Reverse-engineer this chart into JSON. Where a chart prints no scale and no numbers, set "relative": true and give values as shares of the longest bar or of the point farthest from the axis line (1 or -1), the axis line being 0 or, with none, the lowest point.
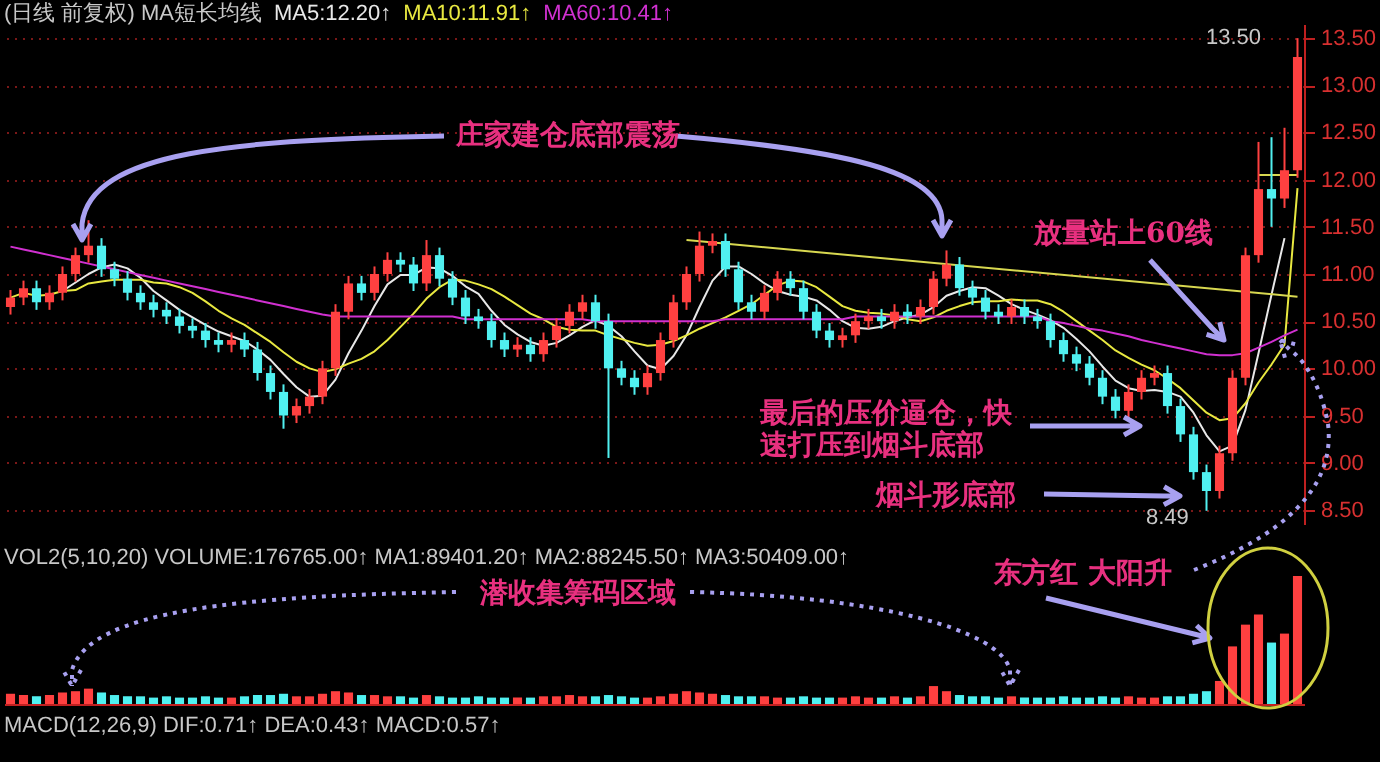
{
  "chart_data": [
    {
      "type": "candlestick",
      "title": "(日线 前复权) MA短长均线",
      "legend": "top left",
      "grid": "y",
      "tick_labels": "y",
      "categories": [
        null,
        null,
        null,
        null,
        null,
        null,
        null,
        null,
        null,
        null,
        null,
        null,
        null,
        null,
        null,
        null,
        null,
        null,
        null,
        null,
        null,
        null,
        null,
        null,
        null,
        null,
        null,
        null,
        null,
        null,
        null,
        null,
        null,
        null,
        null,
        null,
        null,
        null,
        null,
        null,
        null,
        null,
        null,
        null,
        null,
        null,
        null,
        null,
        null,
        null,
        null,
        null,
        null,
        null,
        null,
        null,
        null,
        null,
        null,
        null,
        null,
        null,
        null,
        null,
        null,
        null,
        null,
        null,
        null,
        null,
        null,
        null,
        null,
        null,
        null,
        null,
        null,
        null,
        null,
        null,
        null,
        null,
        null,
        null,
        null,
        null,
        null,
        null,
        null,
        null,
        null,
        null,
        null,
        null,
        null,
        null,
        null,
        null,
        null,
        null
      ],
      "ohlc": [
        [
          10.65,
          10.83,
          10.57,
          10.75
        ],
        [
          10.75,
          10.93,
          10.67,
          10.85
        ],
        [
          10.85,
          10.93,
          10.62,
          10.7
        ],
        [
          10.7,
          10.88,
          10.62,
          10.8
        ],
        [
          10.8,
          11.08,
          10.72,
          11.0
        ],
        [
          11.0,
          11.28,
          10.92,
          11.2
        ],
        [
          11.2,
          11.57,
          11.12,
          11.3
        ],
        [
          11.3,
          11.38,
          10.97,
          11.05
        ],
        [
          11.05,
          11.13,
          10.87,
          10.95
        ],
        [
          10.95,
          11.03,
          10.72,
          10.8
        ],
        [
          10.8,
          10.88,
          10.62,
          10.7
        ],
        [
          10.7,
          10.78,
          10.54,
          10.62
        ],
        [
          10.62,
          10.7,
          10.47,
          10.55
        ],
        [
          10.55,
          10.63,
          10.37,
          10.45
        ],
        [
          10.45,
          10.53,
          10.32,
          10.4
        ],
        [
          10.4,
          10.48,
          10.22,
          10.3
        ],
        [
          10.3,
          10.38,
          10.17,
          10.25
        ],
        [
          10.25,
          10.38,
          10.17,
          10.3
        ],
        [
          10.3,
          10.38,
          10.12,
          10.2
        ],
        [
          10.2,
          10.28,
          9.87,
          9.95
        ],
        [
          9.95,
          10.03,
          9.67,
          9.75
        ],
        [
          9.75,
          9.83,
          9.36,
          9.5
        ],
        [
          9.5,
          9.68,
          9.42,
          9.6
        ],
        [
          9.6,
          9.78,
          9.52,
          9.7
        ],
        [
          9.7,
          10.08,
          9.62,
          10.0
        ],
        [
          10.0,
          10.68,
          9.92,
          10.6
        ],
        [
          10.6,
          10.98,
          10.52,
          10.9
        ],
        [
          10.9,
          10.98,
          10.72,
          10.8
        ],
        [
          10.8,
          11.08,
          10.72,
          11.0
        ],
        [
          11.0,
          11.23,
          10.92,
          11.15
        ],
        [
          11.15,
          11.23,
          11.02,
          11.1
        ],
        [
          11.1,
          11.18,
          10.82,
          10.9
        ],
        [
          10.9,
          11.36,
          10.82,
          11.2
        ],
        [
          11.2,
          11.28,
          10.87,
          10.95
        ],
        [
          10.95,
          11.03,
          10.67,
          10.75
        ],
        [
          10.75,
          10.83,
          10.47,
          10.55
        ],
        [
          10.55,
          10.63,
          10.42,
          10.5
        ],
        [
          10.5,
          10.58,
          10.22,
          10.3
        ],
        [
          10.3,
          10.38,
          10.12,
          10.2
        ],
        [
          10.2,
          10.33,
          10.12,
          10.25
        ],
        [
          10.25,
          10.33,
          10.07,
          10.15
        ],
        [
          10.15,
          10.38,
          10.07,
          10.3
        ],
        [
          10.3,
          10.53,
          10.22,
          10.45
        ],
        [
          10.45,
          10.68,
          10.37,
          10.6
        ],
        [
          10.6,
          10.78,
          10.52,
          10.7
        ],
        [
          10.7,
          10.78,
          10.42,
          10.5
        ],
        [
          10.5,
          10.58,
          9.05,
          10.0
        ],
        [
          10.0,
          10.08,
          9.82,
          9.9
        ],
        [
          9.9,
          9.98,
          9.72,
          9.8
        ],
        [
          9.8,
          10.03,
          9.72,
          9.95
        ],
        [
          9.95,
          10.38,
          9.87,
          10.3
        ],
        [
          10.3,
          10.78,
          10.22,
          10.7
        ],
        [
          10.7,
          11.08,
          10.62,
          11.0
        ],
        [
          11.0,
          11.45,
          10.92,
          11.3
        ],
        [
          11.3,
          11.43,
          11.22,
          11.35
        ],
        [
          11.35,
          11.43,
          10.97,
          11.05
        ],
        [
          11.05,
          11.13,
          10.62,
          10.7
        ],
        [
          10.7,
          10.78,
          10.52,
          10.6
        ],
        [
          10.6,
          10.88,
          10.52,
          10.8
        ],
        [
          10.8,
          11.03,
          10.72,
          10.95
        ],
        [
          10.95,
          11.03,
          10.77,
          10.85
        ],
        [
          10.85,
          10.93,
          10.52,
          10.6
        ],
        [
          10.6,
          10.68,
          10.32,
          10.4
        ],
        [
          10.4,
          10.48,
          10.22,
          10.3
        ],
        [
          10.3,
          10.43,
          10.22,
          10.35
        ],
        [
          10.35,
          10.58,
          10.27,
          10.5
        ],
        [
          10.5,
          10.63,
          10.42,
          10.55
        ],
        [
          10.55,
          10.63,
          10.42,
          10.5
        ],
        [
          10.5,
          10.68,
          10.42,
          10.6
        ],
        [
          10.6,
          10.68,
          10.47,
          10.55
        ],
        [
          10.55,
          10.73,
          10.47,
          10.65
        ],
        [
          10.65,
          11.03,
          10.57,
          10.95
        ],
        [
          10.95,
          11.25,
          10.87,
          11.1
        ],
        [
          11.1,
          11.18,
          10.77,
          10.85
        ],
        [
          10.85,
          10.93,
          10.67,
          10.75
        ],
        [
          10.75,
          10.83,
          10.52,
          10.6
        ],
        [
          10.6,
          10.68,
          10.47,
          10.55
        ],
        [
          10.55,
          10.73,
          10.47,
          10.65
        ],
        [
          10.65,
          10.73,
          10.47,
          10.55
        ],
        [
          10.55,
          10.63,
          10.42,
          10.5
        ],
        [
          10.5,
          10.58,
          10.22,
          10.3
        ],
        [
          10.3,
          10.38,
          10.07,
          10.15
        ],
        [
          10.15,
          10.23,
          9.97,
          10.05
        ],
        [
          10.05,
          10.13,
          9.82,
          9.9
        ],
        [
          9.9,
          9.98,
          9.62,
          9.7
        ],
        [
          9.7,
          9.78,
          9.47,
          9.55
        ],
        [
          9.55,
          9.83,
          9.47,
          9.75
        ],
        [
          9.75,
          9.98,
          9.67,
          9.9
        ],
        [
          9.9,
          10.03,
          9.82,
          9.95
        ],
        [
          9.95,
          10.03,
          9.52,
          9.6
        ],
        [
          9.6,
          9.68,
          9.22,
          9.3
        ],
        [
          9.3,
          9.38,
          8.82,
          8.9
        ],
        [
          8.9,
          8.98,
          8.49,
          8.7
        ],
        [
          8.7,
          9.18,
          8.62,
          9.1
        ],
        [
          9.1,
          9.98,
          9.02,
          9.9
        ],
        [
          9.9,
          11.28,
          9.82,
          11.2
        ],
        [
          11.2,
          12.4,
          11.12,
          11.9
        ],
        [
          11.9,
          12.45,
          11.5,
          11.8
        ],
        [
          11.8,
          12.55,
          11.7,
          12.1
        ],
        [
          12.1,
          13.5,
          12.02,
          13.3
        ]
      ],
      "colors": [
        "#ff4040",
        "#ff4040",
        "#50f0f0",
        "#ff4040",
        "#ff4040",
        "#ff4040",
        "#ff4040",
        "#50f0f0",
        "#50f0f0",
        "#50f0f0",
        "#50f0f0",
        "#50f0f0",
        "#50f0f0",
        "#50f0f0",
        "#50f0f0",
        "#50f0f0",
        "#50f0f0",
        "#ff4040",
        "#50f0f0",
        "#50f0f0",
        "#50f0f0",
        "#50f0f0",
        "#ff4040",
        "#ff4040",
        "#ff4040",
        "#ff4040",
        "#ff4040",
        "#50f0f0",
        "#ff4040",
        "#ff4040",
        "#50f0f0",
        "#50f0f0",
        "#ff4040",
        "#50f0f0",
        "#50f0f0",
        "#50f0f0",
        "#50f0f0",
        "#50f0f0",
        "#50f0f0",
        "#ff4040",
        "#50f0f0",
        "#ff4040",
        "#ff4040",
        "#ff4040",
        "#ff4040",
        "#50f0f0",
        "#50f0f0",
        "#50f0f0",
        "#50f0f0",
        "#ff4040",
        "#ff4040",
        "#ff4040",
        "#ff4040",
        "#ff4040",
        "#ff4040",
        "#50f0f0",
        "#50f0f0",
        "#50f0f0",
        "#ff4040",
        "#ff4040",
        "#50f0f0",
        "#50f0f0",
        "#50f0f0",
        "#50f0f0",
        "#ff4040",
        "#ff4040",
        "#ff4040",
        "#50f0f0",
        "#ff4040",
        "#50f0f0",
        "#ff4040",
        "#ff4040",
        "#ff4040",
        "#50f0f0",
        "#50f0f0",
        "#50f0f0",
        "#50f0f0",
        "#ff4040",
        "#50f0f0",
        "#50f0f0",
        "#50f0f0",
        "#50f0f0",
        "#50f0f0",
        "#50f0f0",
        "#50f0f0",
        "#50f0f0",
        "#ff4040",
        "#ff4040",
        "#ff4040",
        "#50f0f0",
        "#50f0f0",
        "#50f0f0",
        "#50f0f0",
        "#ff4040",
        "#ff4040",
        "#ff4040",
        "#ff4040",
        "#50f0f0",
        "#ff4040",
        "#ff4040"
      ],
      "series": [
        {
          "name": "MA5:12.20↑",
          "type": "line",
          "color": "#e8e8e8",
          "values": [
            null,
            null,
            null,
            null,
            10.82,
            10.91,
            11.0,
            11.07,
            11.1,
            11.06,
            10.96,
            10.82,
            10.72,
            10.62,
            10.54,
            10.46,
            10.39,
            10.34,
            10.29,
            10.2,
            10.09,
            9.94,
            9.8,
            9.7,
            9.71,
            9.88,
            10.16,
            10.4,
            10.66,
            10.89,
            10.99,
            10.99,
            11.07,
            11.06,
            10.98,
            10.87,
            10.79,
            10.61,
            10.46,
            10.36,
            10.28,
            10.24,
            10.27,
            10.35,
            10.44,
            10.51,
            10.45,
            10.34,
            10.18,
            10.03,
            9.99,
            10.13,
            10.35,
            10.65,
            10.93,
            11.08,
            11.08,
            11.0,
            10.9,
            10.82,
            10.78,
            10.76,
            10.72,
            10.62,
            10.5,
            10.43,
            10.42,
            10.44,
            10.5,
            10.54,
            10.57,
            10.65,
            10.77,
            10.82,
            10.86,
            10.85,
            10.77,
            10.68,
            10.62,
            10.57,
            10.51,
            10.43,
            10.31,
            10.18,
            10.02,
            9.87,
            9.79,
            9.76,
            9.77,
            9.75,
            9.7,
            9.53,
            9.29,
            9.12,
            9.18,
            9.56,
            10.16,
            10.78,
            11.38,
            null
          ]
        },
        {
          "name": "MA10:11.91↑",
          "type": "line",
          "color": "#e8e840",
          "values": [
            10.75,
            10.8,
            10.77,
            10.78,
            10.82,
            10.83,
            10.9,
            10.92,
            10.94,
            10.94,
            10.94,
            10.91,
            10.9,
            10.86,
            10.8,
            10.71,
            10.61,
            10.53,
            10.46,
            10.37,
            10.28,
            10.17,
            10.07,
            10.0,
            9.96,
            9.99,
            10.05,
            10.1,
            10.18,
            10.3,
            10.44,
            10.58,
            10.74,
            10.86,
            10.94,
            10.93,
            10.89,
            10.84,
            10.76,
            10.67,
            10.58,
            10.52,
            10.44,
            10.41,
            10.4,
            10.4,
            10.35,
            10.31,
            10.27,
            10.24,
            10.25,
            10.29,
            10.35,
            10.42,
            10.48,
            10.54,
            10.61,
            10.68,
            10.78,
            10.88,
            10.93,
            10.92,
            10.86,
            10.76,
            10.66,
            10.61,
            10.59,
            10.58,
            10.56,
            10.52,
            10.5,
            10.54,
            10.61,
            10.66,
            10.7,
            10.71,
            10.71,
            10.73,
            10.72,
            10.72,
            10.68,
            10.6,
            10.5,
            10.4,
            10.3,
            10.19,
            10.11,
            10.04,
            9.98,
            9.89,
            9.79,
            9.66,
            9.53,
            9.45,
            9.47,
            9.63,
            9.85,
            10.04,
            10.25,
            11.91
          ]
        },
        {
          "name": "MA60:10.41↑",
          "type": "line",
          "color": "#d030d0",
          "values": [
            11.29,
            11.26,
            11.23,
            11.2,
            11.17,
            11.14,
            11.11,
            11.08,
            11.05,
            11.02,
            10.99,
            10.96,
            10.93,
            10.9,
            10.87,
            10.84,
            10.81,
            10.78,
            10.75,
            10.72,
            10.69,
            10.66,
            10.63,
            10.6,
            10.57,
            10.55,
            10.55,
            10.55,
            10.55,
            10.55,
            10.55,
            10.55,
            10.55,
            10.55,
            10.55,
            10.52,
            10.52,
            10.52,
            10.52,
            10.52,
            10.52,
            10.52,
            10.52,
            10.52,
            10.52,
            10.5,
            10.5,
            10.5,
            10.5,
            10.5,
            10.5,
            10.5,
            10.5,
            10.5,
            10.5,
            10.52,
            10.52,
            10.52,
            10.52,
            10.52,
            10.52,
            10.52,
            10.52,
            10.52,
            10.52,
            10.55,
            10.55,
            10.55,
            10.55,
            10.55,
            10.55,
            10.55,
            10.55,
            10.55,
            10.55,
            10.55,
            10.55,
            10.55,
            10.55,
            10.55,
            10.5,
            10.48,
            10.45,
            10.42,
            10.4,
            10.37,
            10.34,
            10.3,
            10.27,
            10.24,
            10.21,
            10.18,
            10.15,
            10.14,
            10.14,
            10.16,
            10.22,
            10.28,
            10.35,
            10.41
          ]
        },
        {
          "type": "line",
          "color": "#d8d850",
          "values": [
            null,
            null,
            null,
            null,
            null,
            null,
            null,
            null,
            null,
            null,
            null,
            null,
            null,
            null,
            null,
            null,
            null,
            null,
            null,
            null,
            null,
            null,
            null,
            null,
            null,
            null,
            null,
            null,
            null,
            null,
            null,
            null,
            null,
            null,
            null,
            null,
            null,
            null,
            null,
            null,
            null,
            null,
            null,
            null,
            null,
            null,
            null,
            null,
            null,
            null,
            null,
            null,
            11.36,
            null,
            null,
            null,
            null,
            null,
            null,
            null,
            null,
            null,
            null,
            null,
            null,
            null,
            null,
            null,
            null,
            null,
            null,
            null,
            null,
            null,
            null,
            null,
            null,
            null,
            null,
            null,
            null,
            null,
            null,
            null,
            null,
            null,
            null,
            null,
            null,
            null,
            null,
            null,
            null,
            null,
            null,
            null,
            null,
            null,
            null,
            10.76
          ]
        },
        {
          "type": "line",
          "color": "#d8d850",
          "values": [
            null,
            null,
            null,
            null,
            null,
            null,
            null,
            null,
            null,
            null,
            null,
            null,
            null,
            null,
            null,
            null,
            null,
            null,
            null,
            null,
            null,
            null,
            null,
            null,
            null,
            null,
            null,
            null,
            null,
            null,
            null,
            null,
            null,
            null,
            null,
            null,
            null,
            null,
            null,
            null,
            null,
            null,
            null,
            null,
            null,
            null,
            null,
            null,
            null,
            null,
            null,
            null,
            null,
            null,
            null,
            null,
            null,
            null,
            null,
            null,
            null,
            null,
            null,
            null,
            null,
            null,
            null,
            null,
            null,
            null,
            null,
            null,
            null,
            null,
            null,
            null,
            null,
            null,
            null,
            null,
            null,
            null,
            null,
            null,
            null,
            null,
            null,
            null,
            null,
            null,
            null,
            null,
            null,
            null,
            null,
            null,
            12.05,
            null,
            null,
            12.05
          ]
        }
      ],
      "ylim": [
        8.35,
        13.65
      ],
      "yticks": [
        {
          "value": 8.5,
          "label": "8.50"
        },
        {
          "value": 9,
          "label": "9.00"
        },
        {
          "value": 9.5,
          "label": "9.50"
        },
        {
          "value": 10,
          "label": "10.00"
        },
        {
          "value": 10.5,
          "label": "10.50"
        },
        {
          "value": 11,
          "label": "11.00"
        },
        {
          "value": 11.5,
          "label": "11.50"
        },
        {
          "value": 12,
          "label": "12.00"
        },
        {
          "value": 12.5,
          "label": "12.50"
        },
        {
          "value": 13,
          "label": "13.00"
        },
        {
          "value": 13.5,
          "label": "13.50"
        }
      ],
      "annotations": [
        "庄家建仓底部震荡",
        "放量站上60线",
        "最后的压价逼仓，快速打压到烟斗底部",
        "烟斗形底部",
        "13.50",
        "8.49"
      ]
    },
    {
      "type": "bar",
      "relative": true,
      "categories": [
        null,
        null,
        null,
        null,
        null,
        null,
        null,
        null,
        null,
        null,
        null,
        null,
        null,
        null,
        null,
        null,
        null,
        null,
        null,
        null,
        null,
        null,
        null,
        null,
        null,
        null,
        null,
        null,
        null,
        null,
        null,
        null,
        null,
        null,
        null,
        null,
        null,
        null,
        null,
        null,
        null,
        null,
        null,
        null,
        null,
        null,
        null,
        null,
        null,
        null,
        null,
        null,
        null,
        null,
        null,
        null,
        null,
        null,
        null,
        null,
        null,
        null,
        null,
        null,
        null,
        null,
        null,
        null,
        null,
        null,
        null,
        null,
        null,
        null,
        null,
        null,
        null,
        null,
        null,
        null,
        null,
        null,
        null,
        null,
        null,
        null,
        null,
        null,
        null,
        null,
        null,
        null,
        null,
        null,
        null,
        null,
        null,
        null,
        null,
        null
      ],
      "values": [
        0.08,
        0.07,
        0.06,
        0.07,
        0.09,
        0.1,
        0.12,
        0.09,
        0.07,
        0.06,
        0.06,
        0.05,
        0.06,
        0.05,
        0.05,
        0.06,
        0.05,
        0.05,
        0.06,
        0.07,
        0.07,
        0.08,
        0.06,
        0.06,
        0.08,
        0.1,
        0.09,
        0.07,
        0.07,
        0.06,
        0.06,
        0.05,
        0.07,
        0.06,
        0.05,
        0.05,
        0.06,
        0.05,
        0.05,
        0.05,
        0.05,
        0.06,
        0.06,
        0.07,
        0.06,
        0.06,
        0.07,
        0.06,
        0.05,
        0.05,
        0.06,
        0.08,
        0.1,
        0.09,
        0.08,
        0.07,
        0.06,
        0.06,
        0.06,
        0.05,
        0.05,
        0.06,
        0.05,
        0.05,
        0.05,
        0.06,
        0.05,
        0.05,
        0.06,
        0.05,
        0.06,
        0.14,
        0.1,
        0.07,
        0.06,
        0.06,
        0.05,
        0.06,
        0.05,
        0.05,
        0.05,
        0.06,
        0.05,
        0.05,
        0.06,
        0.05,
        0.06,
        0.05,
        0.05,
        0.06,
        0.06,
        0.08,
        0.1,
        0.18,
        0.45,
        0.62,
        0.7,
        0.48,
        0.55,
        1
      ],
      "colors": [
        "#ff4040",
        "#ff4040",
        "#50f0f0",
        "#ff4040",
        "#ff4040",
        "#ff4040",
        "#ff4040",
        "#50f0f0",
        "#50f0f0",
        "#50f0f0",
        "#50f0f0",
        "#50f0f0",
        "#50f0f0",
        "#50f0f0",
        "#50f0f0",
        "#50f0f0",
        "#50f0f0",
        "#ff4040",
        "#50f0f0",
        "#50f0f0",
        "#50f0f0",
        "#50f0f0",
        "#ff4040",
        "#ff4040",
        "#ff4040",
        "#ff4040",
        "#ff4040",
        "#50f0f0",
        "#ff4040",
        "#ff4040",
        "#50f0f0",
        "#50f0f0",
        "#ff4040",
        "#50f0f0",
        "#50f0f0",
        "#50f0f0",
        "#50f0f0",
        "#50f0f0",
        "#50f0f0",
        "#ff4040",
        "#50f0f0",
        "#ff4040",
        "#ff4040",
        "#ff4040",
        "#ff4040",
        "#50f0f0",
        "#50f0f0",
        "#50f0f0",
        "#50f0f0",
        "#ff4040",
        "#ff4040",
        "#ff4040",
        "#ff4040",
        "#ff4040",
        "#ff4040",
        "#50f0f0",
        "#50f0f0",
        "#50f0f0",
        "#ff4040",
        "#ff4040",
        "#50f0f0",
        "#50f0f0",
        "#50f0f0",
        "#50f0f0",
        "#ff4040",
        "#ff4040",
        "#ff4040",
        "#50f0f0",
        "#ff4040",
        "#50f0f0",
        "#ff4040",
        "#ff4040",
        "#ff4040",
        "#50f0f0",
        "#50f0f0",
        "#50f0f0",
        "#50f0f0",
        "#ff4040",
        "#50f0f0",
        "#50f0f0",
        "#50f0f0",
        "#50f0f0",
        "#50f0f0",
        "#50f0f0",
        "#50f0f0",
        "#50f0f0",
        "#ff4040",
        "#ff4040",
        "#ff4040",
        "#50f0f0",
        "#50f0f0",
        "#50f0f0",
        "#50f0f0",
        "#ff4040",
        "#ff4040",
        "#ff4040",
        "#ff4040",
        "#50f0f0",
        "#ff4040",
        "#ff4040"
      ],
      "annotations": [
        "VOL2(5,10,20) VOLUME:176765.00↑ MA1:89401.20↑ MA2:88245.50↑ MA3:50409.00↑",
        "潜收集筹码区域",
        "东方红 大阳升",
        "MACD(12,26,9) DIF:0.71↑ DEA:0.43↑ MACD:0.57↑"
      ]
    }
  ]
}
